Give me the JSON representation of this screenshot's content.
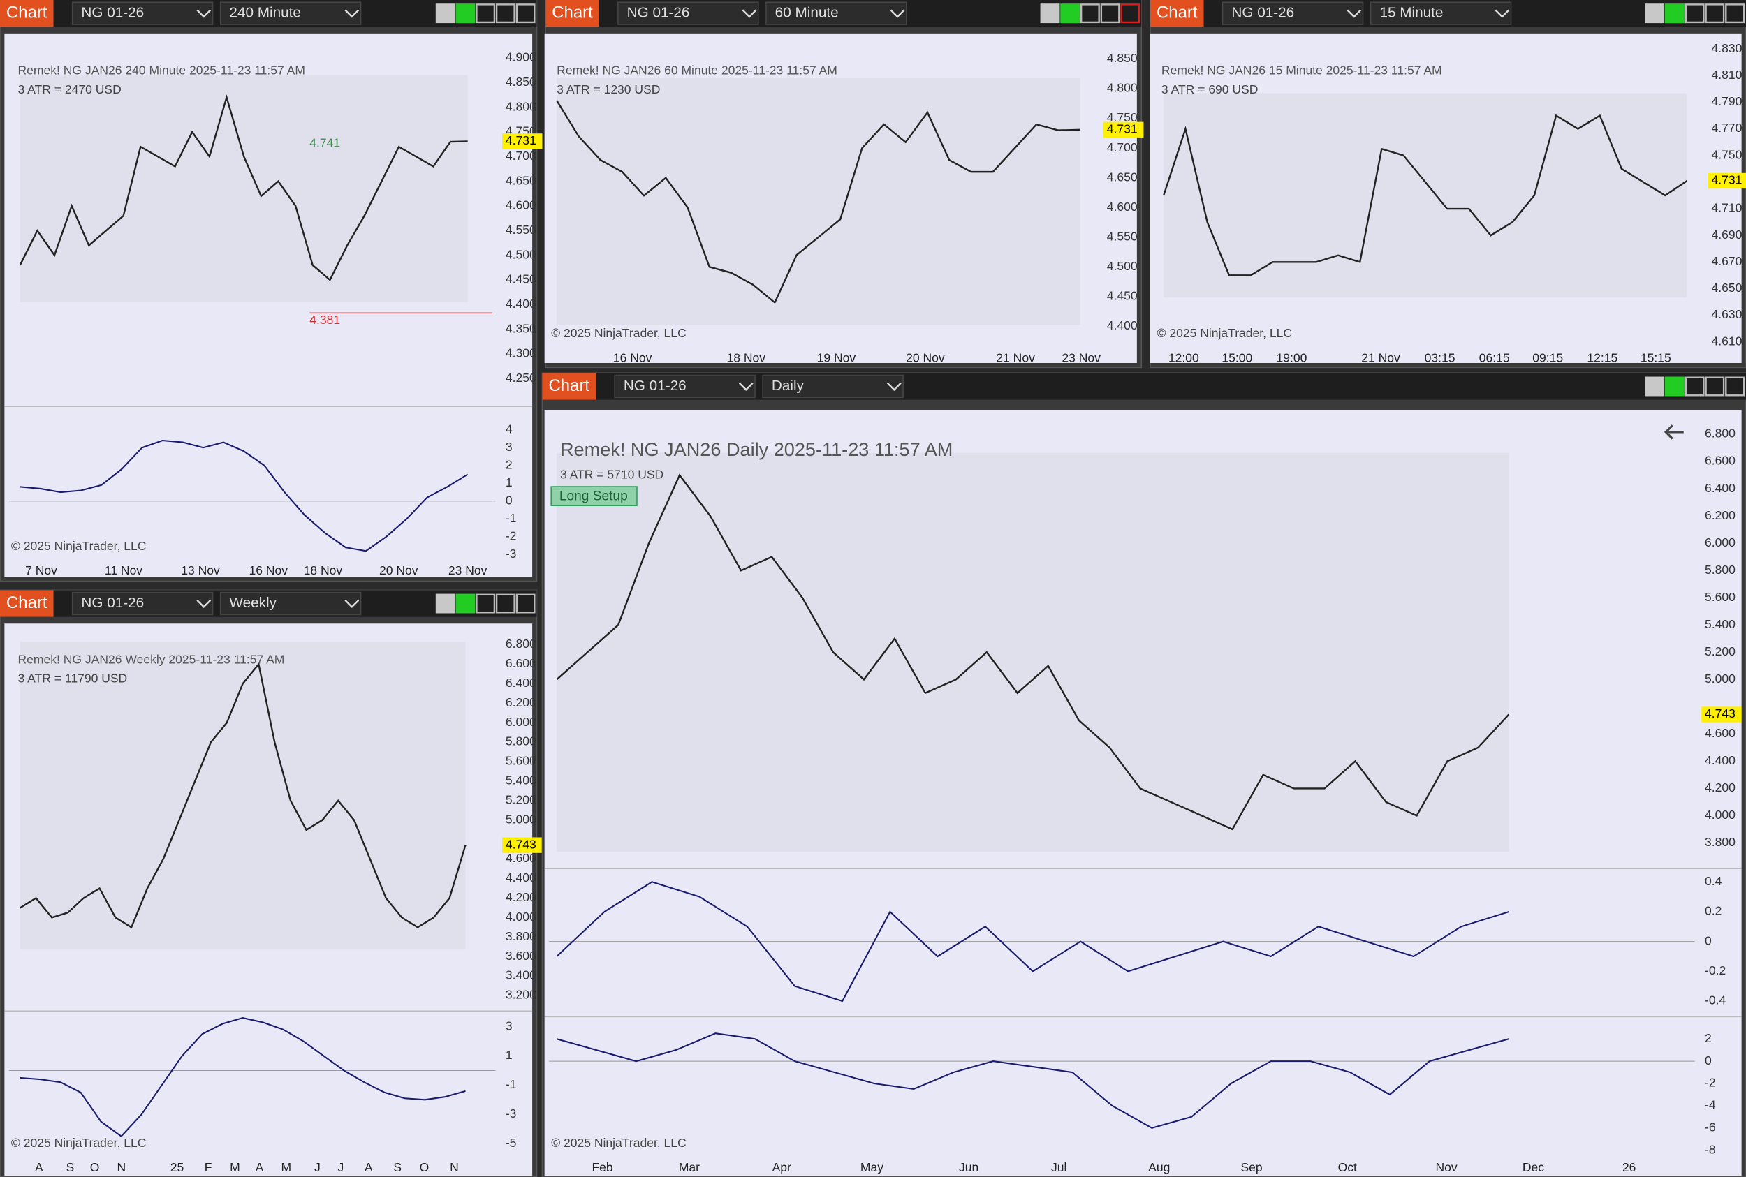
{
  "windows": [
    {
      "button": "Chart",
      "instrument": "NG 01-26",
      "interval": "240 Minute",
      "header": "Remek!  NG JAN26  240 Minute  2025-11-23 11:57 AM",
      "atr": "3 ATR = 2470 USD",
      "copyright": "© 2025 NinjaTrader, LLC",
      "price": {
        "ticks": [
          "4.900",
          "4.850",
          "4.800",
          "4.750",
          "4.700",
          "4.650",
          "4.600",
          "4.550",
          "4.500",
          "4.450",
          "4.400",
          "4.350",
          "4.300",
          "4.250"
        ],
        "last": "4.731",
        "closes": [
          4.48,
          4.55,
          4.5,
          4.6,
          4.52,
          4.55,
          4.58,
          4.72,
          4.7,
          4.68,
          4.75,
          4.7,
          4.82,
          4.7,
          4.62,
          4.65,
          4.6,
          4.48,
          4.45,
          4.52,
          4.58,
          4.65,
          4.72,
          4.7,
          4.68,
          4.73,
          4.731
        ]
      },
      "indicators": [
        {
          "ticks": [
            "4",
            "3",
            "2",
            "1",
            "0",
            "-1",
            "-2",
            "-3"
          ],
          "values": [
            0.8,
            0.7,
            0.5,
            0.6,
            0.9,
            1.8,
            3,
            3.4,
            3.3,
            3,
            3.3,
            2.8,
            2,
            0.5,
            -0.8,
            -1.8,
            -2.6,
            -2.8,
            -2,
            -1,
            0.2,
            0.8,
            1.5
          ]
        }
      ],
      "x_labels": [
        "7 Nov",
        "11 Nov",
        "13 Nov",
        "16 Nov",
        "18 Nov",
        "20 Nov",
        "23 Nov"
      ],
      "annotations": [
        "4.741",
        "4.381"
      ]
    },
    {
      "button": "Chart",
      "instrument": "NG 01-26",
      "interval": "60 Minute",
      "header": "Remek!  NG JAN26  60 Minute  2025-11-23 11:57 AM",
      "atr": "3 ATR = 1230 USD",
      "copyright": "© 2025 NinjaTrader, LLC",
      "price": {
        "ticks": [
          "4.850",
          "4.800",
          "4.750",
          "4.700",
          "4.650",
          "4.600",
          "4.550",
          "4.500",
          "4.450",
          "4.400"
        ],
        "last": "4.731",
        "closes": [
          4.78,
          4.72,
          4.68,
          4.66,
          4.62,
          4.65,
          4.6,
          4.5,
          4.49,
          4.47,
          4.44,
          4.52,
          4.55,
          4.58,
          4.7,
          4.74,
          4.71,
          4.76,
          4.68,
          4.66,
          4.66,
          4.7,
          4.74,
          4.73,
          4.731
        ]
      },
      "indicators": [],
      "x_labels": [
        "16 Nov",
        "18 Nov",
        "19 Nov",
        "20 Nov",
        "21 Nov",
        "23 Nov"
      ]
    },
    {
      "button": "Chart",
      "instrument": "NG 01-26",
      "interval": "15 Minute",
      "header": "Remek!  NG JAN26  15 Minute  2025-11-23 11:57 AM",
      "atr": "3 ATR = 690 USD",
      "copyright": "© 2025 NinjaTrader, LLC",
      "price": {
        "ticks": [
          "4.830",
          "4.810",
          "4.790",
          "4.770",
          "4.750",
          "4.710",
          "4.690",
          "4.670",
          "4.650",
          "4.630",
          "4.610"
        ],
        "last": "4.731",
        "closes": [
          4.72,
          4.77,
          4.7,
          4.66,
          4.66,
          4.67,
          4.67,
          4.67,
          4.675,
          4.67,
          4.755,
          4.75,
          4.73,
          4.71,
          4.71,
          4.69,
          4.7,
          4.72,
          4.78,
          4.77,
          4.78,
          4.74,
          4.73,
          4.72,
          4.731
        ]
      },
      "indicators": [],
      "x_labels": [
        "12:00",
        "15:00",
        "19:00",
        "21 Nov",
        "03:15",
        "06:15",
        "09:15",
        "12:15",
        "15:15"
      ]
    },
    {
      "button": "Chart",
      "instrument": "NG 01-26",
      "interval": "Weekly",
      "header": "Remek!  NG JAN26  Weekly  2025-11-23 11:57 AM",
      "atr": "3 ATR = 11790 USD",
      "copyright": "© 2025 NinjaTrader, LLC",
      "price": {
        "ticks": [
          "6.800",
          "6.600",
          "6.400",
          "6.200",
          "6.000",
          "5.800",
          "5.600",
          "5.400",
          "5.200",
          "5.000",
          "4.600",
          "4.400",
          "4.200",
          "4.000",
          "3.800",
          "3.600",
          "3.400",
          "3.200"
        ],
        "last": "4.743",
        "closes": [
          4.1,
          4.2,
          4,
          4.05,
          4.2,
          4.3,
          4,
          3.9,
          4.3,
          4.6,
          5,
          5.4,
          5.8,
          6,
          6.4,
          6.6,
          5.8,
          5.2,
          4.9,
          5,
          5.2,
          5,
          4.6,
          4.2,
          4,
          3.9,
          4,
          4.2,
          4.743
        ]
      },
      "indicators": [
        {
          "ticks": [
            "3",
            "1",
            "-1",
            "-3",
            "-5"
          ],
          "values": [
            -0.5,
            -0.6,
            -0.8,
            -1.5,
            -3.5,
            -4.5,
            -3,
            -1,
            1,
            2.5,
            3.2,
            3.6,
            3.3,
            2.8,
            2,
            1,
            0,
            -0.8,
            -1.5,
            -1.9,
            -2,
            -1.8,
            -1.4
          ]
        }
      ],
      "x_labels": [
        "A",
        "S",
        "O",
        "N",
        "25",
        "F",
        "M",
        "A",
        "M",
        "J",
        "J",
        "A",
        "S",
        "O",
        "N"
      ]
    },
    {
      "button": "Chart",
      "instrument": "NG 01-26",
      "interval": "Daily",
      "header": "Remek!  NG JAN26  Daily  2025-11-23 11:57 AM",
      "atr": "3 ATR = 5710 USD",
      "setup": "Long Setup",
      "copyright": "© 2025 NinjaTrader, LLC",
      "price": {
        "ticks": [
          "6.800",
          "6.600",
          "6.400",
          "6.200",
          "6.000",
          "5.800",
          "5.600",
          "5.400",
          "5.200",
          "5.000",
          "4.600",
          "4.400",
          "4.200",
          "4.000",
          "3.800"
        ],
        "last": "4.743",
        "closes": [
          5,
          5.2,
          5.4,
          6,
          6.5,
          6.2,
          5.8,
          5.9,
          5.6,
          5.2,
          5,
          5.3,
          4.9,
          5,
          5.2,
          4.9,
          5.1,
          4.7,
          4.5,
          4.2,
          4.1,
          4,
          3.9,
          4.3,
          4.2,
          4.2,
          4.4,
          4.1,
          4,
          4.4,
          4.5,
          4.743
        ]
      },
      "indicators": [
        {
          "ticks": [
            "0.4",
            "0.2",
            "0",
            "-0.2",
            "-0.4"
          ],
          "values": [
            -0.1,
            0.2,
            0.4,
            0.3,
            0.1,
            -0.3,
            -0.4,
            0.2,
            -0.1,
            0.1,
            -0.2,
            0,
            -0.2,
            -0.1,
            0,
            -0.1,
            0.1,
            0,
            -0.1,
            0.1,
            0.2
          ]
        },
        {
          "ticks": [
            "2",
            "0",
            "-2",
            "-4",
            "-6",
            "-8"
          ],
          "values": [
            2,
            1,
            0,
            1,
            2.5,
            2,
            0,
            -1,
            -2,
            -2.5,
            -1,
            0,
            -0.5,
            -1,
            -4,
            -6,
            -5,
            -2,
            0,
            0,
            -1,
            -3,
            0,
            1,
            2
          ]
        }
      ],
      "x_labels": [
        "Feb",
        "Mar",
        "Apr",
        "May",
        "Jun",
        "Jul",
        "Aug",
        "Sep",
        "Oct",
        "Nov",
        "Dec",
        "26"
      ]
    }
  ]
}
